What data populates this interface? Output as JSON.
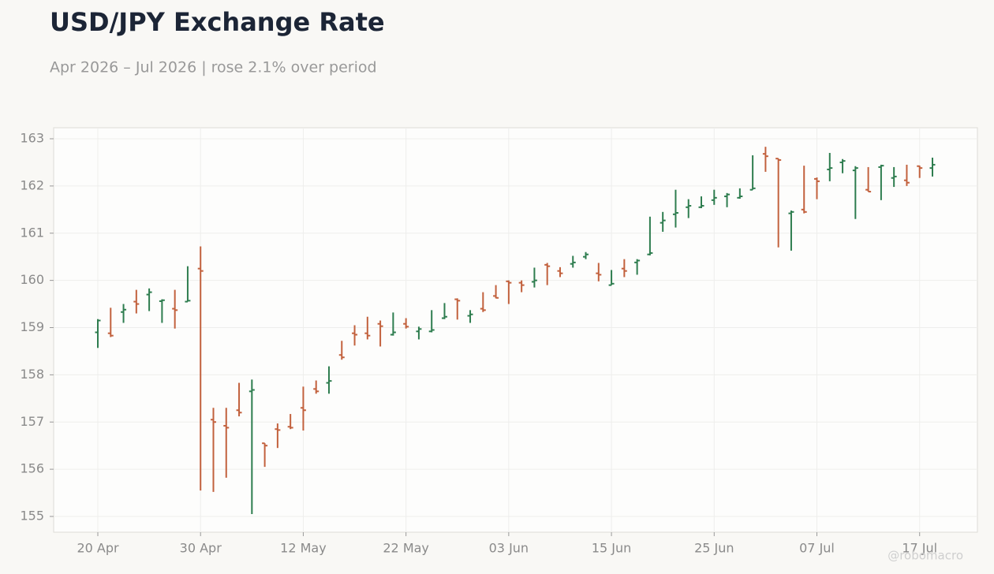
{
  "chart_data": {
    "type": "ohlc",
    "title": "USD/JPY Exchange Rate",
    "subtitle": "Apr 2026 – Jul 2026 | rose 2.1% over period",
    "watermark": "@robomacro",
    "categories": [
      "20 Apr",
      "21 Apr",
      "22 Apr",
      "23 Apr",
      "24 Apr",
      "27 Apr",
      "28 Apr",
      "29 Apr",
      "30 Apr",
      "01 May",
      "04 May",
      "05 May",
      "06 May",
      "07 May",
      "08 May",
      "11 May",
      "12 May",
      "13 May",
      "14 May",
      "15 May",
      "18 May",
      "19 May",
      "20 May",
      "21 May",
      "22 May",
      "25 May",
      "26 May",
      "27 May",
      "28 May",
      "29 May",
      "01 Jun",
      "02 Jun",
      "03 Jun",
      "04 Jun",
      "05 Jun",
      "08 Jun",
      "09 Jun",
      "10 Jun",
      "11 Jun",
      "12 Jun",
      "15 Jun",
      "16 Jun",
      "17 Jun",
      "18 Jun",
      "19 Jun",
      "22 Jun",
      "23 Jun",
      "24 Jun",
      "25 Jun",
      "26 Jun",
      "29 Jun",
      "30 Jun",
      "01 Jul",
      "02 Jul",
      "03 Jul",
      "06 Jul",
      "07 Jul",
      "08 Jul",
      "09 Jul",
      "10 Jul",
      "13 Jul",
      "14 Jul",
      "15 Jul",
      "16 Jul",
      "17 Jul",
      "20 Jul"
    ],
    "open": [
      158.9,
      158.88,
      159.33,
      159.55,
      159.7,
      159.56,
      159.4,
      159.55,
      160.25,
      157.05,
      156.92,
      157.25,
      157.65,
      156.55,
      156.85,
      156.9,
      157.3,
      157.7,
      157.83,
      158.42,
      158.88,
      158.88,
      159.08,
      158.85,
      159.08,
      158.92,
      158.92,
      159.2,
      159.6,
      159.25,
      159.4,
      159.67,
      159.98,
      159.95,
      159.97,
      160.33,
      160.2,
      160.35,
      160.5,
      160.15,
      159.9,
      160.25,
      160.38,
      160.55,
      161.22,
      161.4,
      161.55,
      161.55,
      161.7,
      161.78,
      161.75,
      161.92,
      162.68,
      162.58,
      161.42,
      161.5,
      162.15,
      162.35,
      162.5,
      162.33,
      161.92,
      162.4,
      162.17,
      162.12,
      162.42,
      162.38
    ],
    "high": [
      159.18,
      159.42,
      159.5,
      159.8,
      159.83,
      159.6,
      159.8,
      160.3,
      160.72,
      157.3,
      157.3,
      157.83,
      157.9,
      156.55,
      156.97,
      157.17,
      157.75,
      157.88,
      158.18,
      158.72,
      159.05,
      159.23,
      159.15,
      159.32,
      159.2,
      159.02,
      159.37,
      159.52,
      159.62,
      159.37,
      159.75,
      159.9,
      160.0,
      160.0,
      160.27,
      160.37,
      160.28,
      160.52,
      160.6,
      160.37,
      160.22,
      160.45,
      160.45,
      161.35,
      161.45,
      161.92,
      161.72,
      161.78,
      161.92,
      161.85,
      161.95,
      162.65,
      162.83,
      162.58,
      161.48,
      162.43,
      162.18,
      162.7,
      162.57,
      162.42,
      162.4,
      162.45,
      162.4,
      162.45,
      162.43,
      162.6
    ],
    "low": [
      158.57,
      158.8,
      159.1,
      159.3,
      159.35,
      159.1,
      158.98,
      159.55,
      155.55,
      155.52,
      155.82,
      157.12,
      155.05,
      156.05,
      156.45,
      156.85,
      156.82,
      157.6,
      157.6,
      158.32,
      158.62,
      158.75,
      158.6,
      158.83,
      158.98,
      158.75,
      158.9,
      159.18,
      159.17,
      159.1,
      159.33,
      159.62,
      159.5,
      159.75,
      159.85,
      159.9,
      160.07,
      160.27,
      160.45,
      159.98,
      159.9,
      160.07,
      160.12,
      160.53,
      161.03,
      161.12,
      161.32,
      161.53,
      161.6,
      161.55,
      161.73,
      161.92,
      162.3,
      160.7,
      160.63,
      161.42,
      161.72,
      162.1,
      162.27,
      161.3,
      161.88,
      161.7,
      161.98,
      162.0,
      162.17,
      162.2
    ],
    "close": [
      159.15,
      158.83,
      159.38,
      159.5,
      159.75,
      159.58,
      159.37,
      159.57,
      160.2,
      157.0,
      156.88,
      157.2,
      157.68,
      156.5,
      156.83,
      156.88,
      157.25,
      157.65,
      157.87,
      158.37,
      158.85,
      158.83,
      159.03,
      158.9,
      159.02,
      158.97,
      158.95,
      159.23,
      159.57,
      159.28,
      159.37,
      159.63,
      159.95,
      159.9,
      160.0,
      160.3,
      160.15,
      160.38,
      160.55,
      160.12,
      159.93,
      160.2,
      160.42,
      160.58,
      161.27,
      161.43,
      161.58,
      161.58,
      161.75,
      161.82,
      161.78,
      161.95,
      162.63,
      162.55,
      161.45,
      161.45,
      162.1,
      162.38,
      162.53,
      162.38,
      161.88,
      162.43,
      162.2,
      162.07,
      162.38,
      162.45
    ],
    "up_color": "#2e7d4f",
    "down_color": "#c2613d",
    "ylim": [
      154.8,
      163.2
    ],
    "yticks": [
      155,
      156,
      157,
      158,
      159,
      160,
      161,
      162,
      163
    ],
    "xticks": [
      "20 Apr",
      "30 Apr",
      "12 May",
      "22 May",
      "03 Jun",
      "15 Jun",
      "25 Jun",
      "07 Jul",
      "17 Jul"
    ],
    "grid": true
  }
}
